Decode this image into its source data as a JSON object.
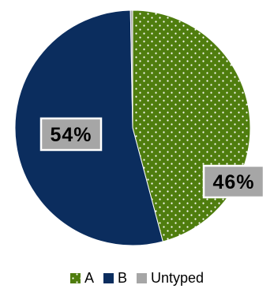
{
  "chart_data": {
    "type": "pie",
    "title": "",
    "slices": [
      {
        "label": "A",
        "value": 46,
        "data_label": "46%",
        "color": "#4f7d0e",
        "pattern": "white-dots"
      },
      {
        "label": "B",
        "value": 54,
        "data_label": "54%",
        "color": "#0b2d5e",
        "pattern": "none"
      },
      {
        "label": "Untyped",
        "value": 0.3,
        "data_label": "",
        "color": "#a6a6a6",
        "pattern": "none"
      }
    ],
    "legend": {
      "position": "bottom",
      "entries": [
        "A",
        "B",
        "Untyped"
      ]
    },
    "start_angle": "top, clockwise"
  }
}
